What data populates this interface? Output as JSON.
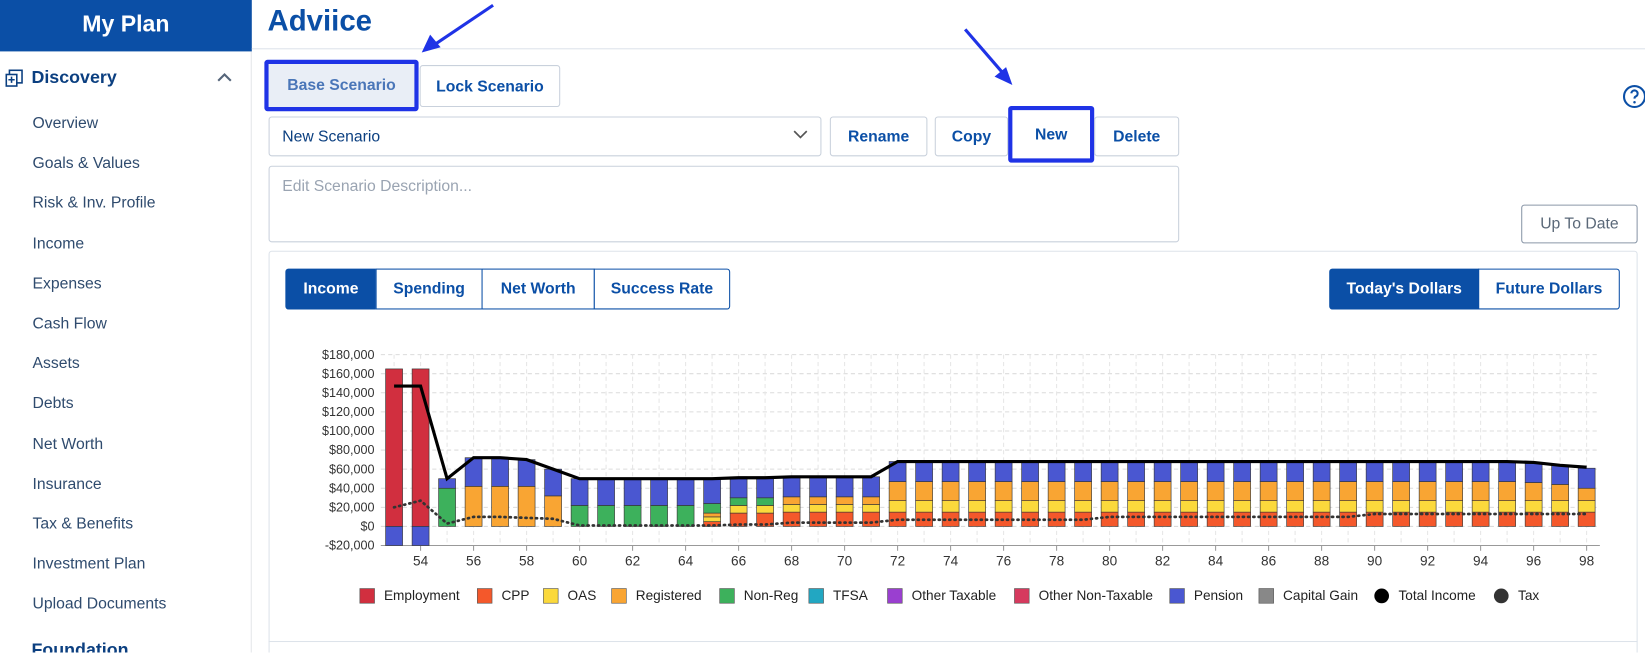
{
  "sidebar": {
    "title": "My Plan",
    "section": "Discovery",
    "items": [
      "Overview",
      "Goals & Values",
      "Risk & Inv. Profile",
      "Income",
      "Expenses",
      "Cash Flow",
      "Assets",
      "Debts",
      "Net Worth",
      "Insurance",
      "Tax & Benefits",
      "Investment Plan",
      "Upload Documents"
    ],
    "next_section": "Foundation"
  },
  "header": {
    "title": "Adviice"
  },
  "scenario_tabs": [
    "Base Scenario",
    "Lock Scenario"
  ],
  "scenario_select": "New Scenario",
  "scenario_actions": [
    "Rename",
    "Copy",
    "New",
    "Delete"
  ],
  "description_placeholder": "Edit Scenario Description...",
  "status_button": "Up To Date",
  "view_tabs": [
    "Income",
    "Spending",
    "Net Worth",
    "Success Rate"
  ],
  "dollar_tabs": [
    "Today's Dollars",
    "Future Dollars"
  ],
  "chart_data": {
    "type": "bar",
    "stacked": true,
    "categories": [
      null,
      "54",
      null,
      "56",
      null,
      "58",
      null,
      "60",
      null,
      "62",
      null,
      "64",
      null,
      "66",
      null,
      "68",
      null,
      "70",
      null,
      "72",
      null,
      "74",
      null,
      "76",
      null,
      "78",
      null,
      "80",
      null,
      "82",
      null,
      "84",
      null,
      "86",
      null,
      "88",
      null,
      "90",
      null,
      "92",
      null,
      "94",
      null,
      "96",
      null,
      "98"
    ],
    "ylim": [
      -20000,
      180000
    ],
    "yticks": [
      {
        "value": -20000,
        "label": "-$20,000"
      },
      {
        "value": 0,
        "label": "$0"
      },
      {
        "value": 20000,
        "label": "$20,000"
      },
      {
        "value": 40000,
        "label": "$40,000"
      },
      {
        "value": 60000,
        "label": "$60,000"
      },
      {
        "value": 80000,
        "label": "$80,000"
      },
      {
        "value": 100000,
        "label": "$100,000"
      },
      {
        "value": 120000,
        "label": "$120,000"
      },
      {
        "value": 140000,
        "label": "$140,000"
      },
      {
        "value": 160000,
        "label": "$160,000"
      },
      {
        "value": 180000,
        "label": "$180,000"
      }
    ],
    "grid": true,
    "series": [
      {
        "name": "Employment",
        "color": "#d12f3f",
        "values": [
          165000,
          165000,
          0,
          0,
          0,
          0,
          0,
          0,
          0,
          0,
          0,
          0,
          0,
          0,
          0,
          0,
          0,
          0,
          0,
          0,
          0,
          0,
          0,
          0,
          0,
          0,
          0,
          0,
          0,
          0,
          0,
          0,
          0,
          0,
          0,
          0,
          0,
          0,
          0,
          0,
          0,
          0,
          0,
          0,
          0,
          0
        ]
      },
      {
        "name": "CPP",
        "color": "#f4582b",
        "values": [
          0,
          0,
          0,
          0,
          0,
          0,
          0,
          0,
          0,
          0,
          0,
          0,
          5000,
          14000,
          14000,
          15000,
          15000,
          15000,
          15000,
          15000,
          15000,
          15000,
          15000,
          15000,
          15000,
          15000,
          15000,
          15000,
          15000,
          15000,
          15000,
          15000,
          15000,
          15000,
          15000,
          15000,
          15000,
          15000,
          15000,
          15000,
          15000,
          15000,
          15000,
          15000,
          15000,
          15000
        ]
      },
      {
        "name": "OAS",
        "color": "#fbd93c",
        "values": [
          0,
          0,
          0,
          0,
          0,
          0,
          0,
          0,
          0,
          0,
          0,
          0,
          5000,
          8000,
          8000,
          8000,
          8000,
          8000,
          8000,
          12000,
          12000,
          12000,
          12000,
          12000,
          12000,
          12000,
          12000,
          12000,
          12000,
          12000,
          12000,
          12000,
          12000,
          12000,
          12000,
          12000,
          12000,
          12000,
          12000,
          12000,
          12000,
          12000,
          12000,
          12000,
          12000,
          12000
        ]
      },
      {
        "name": "Registered",
        "color": "#f9a533",
        "values": [
          0,
          0,
          0,
          42000,
          42000,
          42000,
          32000,
          0,
          0,
          0,
          0,
          0,
          4000,
          0,
          0,
          8000,
          8000,
          8000,
          8000,
          20000,
          20000,
          20000,
          20000,
          20000,
          20000,
          20000,
          20000,
          20000,
          20000,
          20000,
          20000,
          20000,
          20000,
          20000,
          20000,
          20000,
          20000,
          20000,
          20000,
          20000,
          20000,
          20000,
          20000,
          19000,
          17000,
          13000
        ]
      },
      {
        "name": "Non-Reg",
        "color": "#3db15c",
        "values": [
          0,
          0,
          40000,
          0,
          0,
          0,
          0,
          22000,
          22000,
          22000,
          22000,
          22000,
          10000,
          8000,
          8000,
          0,
          0,
          0,
          0,
          0,
          0,
          0,
          0,
          0,
          0,
          0,
          0,
          0,
          0,
          0,
          0,
          0,
          0,
          0,
          0,
          0,
          0,
          0,
          0,
          0,
          0,
          0,
          0,
          0,
          0,
          0
        ]
      },
      {
        "name": "TFSA",
        "color": "#22a7c2",
        "values": [
          0,
          0,
          0,
          0,
          0,
          0,
          0,
          0,
          0,
          0,
          0,
          0,
          0,
          0,
          0,
          0,
          0,
          0,
          0,
          0,
          0,
          0,
          0,
          0,
          0,
          0,
          0,
          0,
          0,
          0,
          0,
          0,
          0,
          0,
          0,
          0,
          0,
          0,
          0,
          0,
          0,
          0,
          0,
          0,
          0,
          0
        ]
      },
      {
        "name": "Other Taxable",
        "color": "#9a3fd0",
        "values": [
          0,
          0,
          0,
          0,
          0,
          0,
          0,
          0,
          0,
          0,
          0,
          0,
          0,
          0,
          0,
          0,
          0,
          0,
          0,
          0,
          0,
          0,
          0,
          0,
          0,
          0,
          0,
          0,
          0,
          0,
          0,
          0,
          0,
          0,
          0,
          0,
          0,
          0,
          0,
          0,
          0,
          0,
          0,
          0,
          0,
          0
        ]
      },
      {
        "name": "Other Non-Taxable",
        "color": "#d63a5e",
        "values": [
          0,
          0,
          0,
          0,
          0,
          0,
          0,
          0,
          0,
          0,
          0,
          0,
          0,
          0,
          0,
          0,
          0,
          0,
          0,
          0,
          0,
          0,
          0,
          0,
          0,
          0,
          0,
          0,
          0,
          0,
          0,
          0,
          0,
          0,
          0,
          0,
          0,
          0,
          0,
          0,
          0,
          0,
          0,
          0,
          0,
          0
        ]
      },
      {
        "name": "Pension",
        "color": "#4a57d1",
        "values": [
          -20000,
          -20000,
          10000,
          30000,
          30000,
          28000,
          28000,
          28000,
          28000,
          28000,
          28000,
          28000,
          26000,
          22000,
          22000,
          21000,
          21000,
          21000,
          21000,
          21000,
          21000,
          21000,
          21000,
          21000,
          21000,
          21000,
          21000,
          21000,
          21000,
          21000,
          21000,
          21000,
          21000,
          21000,
          21000,
          21000,
          21000,
          21000,
          21000,
          21000,
          21000,
          21000,
          21000,
          20000,
          20000,
          21000
        ]
      },
      {
        "name": "Capital Gain",
        "color": "#888888",
        "values": [
          0,
          0,
          0,
          0,
          0,
          0,
          0,
          0,
          0,
          0,
          0,
          0,
          0,
          0,
          0,
          0,
          0,
          0,
          0,
          0,
          0,
          0,
          0,
          0,
          0,
          0,
          0,
          0,
          0,
          0,
          0,
          0,
          0,
          0,
          0,
          0,
          0,
          0,
          0,
          0,
          0,
          0,
          0,
          0,
          0,
          0
        ]
      },
      {
        "name": "Total Income",
        "color": "#000000",
        "type": "line",
        "style": "solid",
        "values": [
          147000,
          147000,
          50000,
          72000,
          72000,
          70000,
          60000,
          50000,
          50000,
          50000,
          50000,
          50000,
          50000,
          51000,
          51000,
          52000,
          52000,
          52000,
          52000,
          68000,
          68000,
          68000,
          68000,
          68000,
          68000,
          68000,
          68000,
          68000,
          68000,
          68000,
          68000,
          68000,
          68000,
          68000,
          68000,
          68000,
          68000,
          68000,
          68000,
          68000,
          68000,
          68000,
          68000,
          67000,
          64000,
          62000
        ]
      },
      {
        "name": "Tax",
        "color": "#333333",
        "type": "line",
        "style": "dotted",
        "values": [
          20000,
          27000,
          3000,
          10000,
          10000,
          9000,
          8000,
          1000,
          1000,
          1000,
          1000,
          1000,
          1000,
          2000,
          2000,
          4000,
          4000,
          4000,
          4000,
          7000,
          7000,
          7000,
          7000,
          7000,
          7000,
          7000,
          7000,
          10000,
          10000,
          10000,
          10000,
          10000,
          10000,
          10000,
          10000,
          10000,
          10000,
          13000,
          13000,
          13000,
          13000,
          13000,
          13000,
          13000,
          13000,
          13000
        ]
      }
    ]
  }
}
